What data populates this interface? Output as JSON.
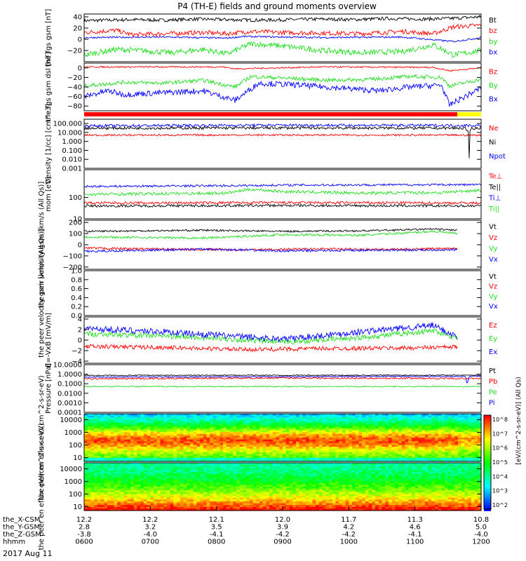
{
  "title": "P4 (TH-E) fields and ground moments overview",
  "date_label": "2017 Aug 11",
  "colors": {
    "black": "#000000",
    "red": "#ff0000",
    "green": "#22dd22",
    "blue": "#0000ff"
  },
  "status_bar": {
    "colors": [
      "#ff0000",
      "#ffff00"
    ]
  },
  "colorbar": {
    "unit_label": "[eV/(cm^2-s-sr-eV)] (All Qs)",
    "ticks": [
      "10^8",
      "10^7",
      "10^6",
      "10^5",
      "10^4",
      "10^3",
      "10^2"
    ]
  },
  "ephemeris": {
    "rows": [
      {
        "label": "the_X-CSM",
        "values": [
          "12.2",
          "12.2",
          "12.1",
          "12.0",
          "11.7",
          "11.3",
          "10.8"
        ]
      },
      {
        "label": "the_Y-GSM",
        "values": [
          "2.8",
          "3.2",
          "3.5",
          "3.9",
          "4.2",
          "4.6",
          "5.0"
        ]
      },
      {
        "label": "the_Z-GSM",
        "values": [
          "-3.8",
          "-4.0",
          "-4.1",
          "-4.2",
          "-4.2",
          "-4.1",
          "-4.0"
        ]
      },
      {
        "label": "hhmm",
        "values": [
          "0600",
          "0700",
          "0800",
          "0900",
          "1000",
          "1100",
          "1200"
        ]
      }
    ]
  },
  "chart_data": [
    {
      "type": "line",
      "id": "fgs_gsm",
      "ylabel": "the fgs gsm [nT]",
      "ylim": [
        -40,
        45
      ],
      "yticks": [
        "40",
        "20",
        "0",
        "−20"
      ],
      "series": [
        {
          "name": "Bt",
          "base": 34,
          "noise": 3,
          "points": [
            [
              0,
              33
            ],
            [
              0.05,
              34
            ],
            [
              0.12,
              35
            ],
            [
              0.2,
              34
            ],
            [
              0.28,
              36
            ],
            [
              0.36,
              35
            ],
            [
              0.44,
              34
            ],
            [
              0.52,
              35
            ],
            [
              0.6,
              36
            ],
            [
              0.68,
              35
            ],
            [
              0.76,
              37
            ],
            [
              0.85,
              36
            ],
            [
              0.92,
              37
            ],
            [
              1,
              40
            ]
          ]
        },
        {
          "name": "bz",
          "base": 10,
          "noise": 4,
          "points": [
            [
              0,
              12
            ],
            [
              0.08,
              16
            ],
            [
              0.12,
              8
            ],
            [
              0.2,
              10
            ],
            [
              0.3,
              12
            ],
            [
              0.36,
              10
            ],
            [
              0.42,
              14
            ],
            [
              0.5,
              12
            ],
            [
              0.6,
              11
            ],
            [
              0.7,
              10
            ],
            [
              0.8,
              14
            ],
            [
              0.88,
              10
            ],
            [
              0.93,
              22
            ],
            [
              1,
              25
            ]
          ]
        },
        {
          "name": "by",
          "base": -22,
          "noise": 5,
          "points": [
            [
              0,
              -28
            ],
            [
              0.08,
              -18
            ],
            [
              0.14,
              -20
            ],
            [
              0.22,
              -24
            ],
            [
              0.3,
              -18
            ],
            [
              0.36,
              -26
            ],
            [
              0.42,
              -8
            ],
            [
              0.5,
              -12
            ],
            [
              0.6,
              -20
            ],
            [
              0.7,
              -24
            ],
            [
              0.8,
              -22
            ],
            [
              0.88,
              -10
            ],
            [
              0.93,
              -28
            ],
            [
              1,
              -20
            ]
          ]
        },
        {
          "name": "bx",
          "base": 3,
          "noise": 1.5,
          "points": [
            [
              0,
              3
            ],
            [
              0.2,
              4
            ],
            [
              0.36,
              2
            ],
            [
              0.4,
              5
            ],
            [
              0.6,
              3
            ],
            [
              0.8,
              4
            ],
            [
              0.93,
              -4
            ],
            [
              1,
              3
            ]
          ]
        }
      ]
    },
    {
      "type": "line",
      "id": "fgs_gsm_dsl",
      "ylabel": "the fgs gsm dsl [nT]",
      "ylim": [
        -90,
        10
      ],
      "yticks": [
        "0",
        "−20",
        "−40",
        "−60",
        "−80"
      ],
      "series": [
        {
          "name": "Bz",
          "base": 2,
          "noise": 1.5,
          "points": [
            [
              0,
              2
            ],
            [
              0.35,
              2
            ],
            [
              0.38,
              -2
            ],
            [
              0.6,
              2
            ],
            [
              0.88,
              1
            ],
            [
              0.92,
              -6
            ],
            [
              1,
              0
            ]
          ]
        },
        {
          "name": "By",
          "base": -30,
          "noise": 4,
          "points": [
            [
              0,
              -38
            ],
            [
              0.1,
              -30
            ],
            [
              0.2,
              -32
            ],
            [
              0.3,
              -26
            ],
            [
              0.38,
              -40
            ],
            [
              0.42,
              -18
            ],
            [
              0.52,
              -22
            ],
            [
              0.62,
              -26
            ],
            [
              0.72,
              -24
            ],
            [
              0.82,
              -18
            ],
            [
              0.9,
              -20
            ],
            [
              0.92,
              -38
            ],
            [
              1,
              -24
            ]
          ]
        },
        {
          "name": "Bx",
          "base": -50,
          "noise": 6,
          "points": [
            [
              0,
              -60
            ],
            [
              0.06,
              -48
            ],
            [
              0.1,
              -56
            ],
            [
              0.2,
              -52
            ],
            [
              0.3,
              -48
            ],
            [
              0.38,
              -68
            ],
            [
              0.44,
              -32
            ],
            [
              0.54,
              -36
            ],
            [
              0.64,
              -42
            ],
            [
              0.74,
              -48
            ],
            [
              0.82,
              -40
            ],
            [
              0.9,
              -36
            ],
            [
              0.92,
              -78
            ],
            [
              1,
              -42
            ]
          ]
        }
      ]
    },
    {
      "type": "line",
      "id": "density",
      "scale": "log",
      "ylabel": "Density [1/cc] [cm^-3]",
      "ylim": [
        0.001,
        300
      ],
      "yticks": [
        "100.000",
        "10.000",
        "1.000",
        "0.100",
        "0.010",
        "0.001"
      ],
      "series": [
        {
          "name": "Ne",
          "base": 5,
          "noise": 0.1,
          "points": [
            [
              0,
              5
            ],
            [
              0.5,
              5.2
            ],
            [
              0.95,
              5
            ],
            [
              1,
              5
            ]
          ]
        },
        {
          "name": "Ni",
          "base": 30,
          "noise": 0.15,
          "points": [
            [
              0,
              30
            ],
            [
              0.5,
              32
            ],
            [
              0.96,
              30
            ],
            [
              0.97,
              0.01
            ],
            [
              0.975,
              30
            ],
            [
              1,
              30
            ]
          ]
        },
        {
          "name": "Npot",
          "base": 60,
          "noise": 0.15,
          "points": [
            [
              0,
              55
            ],
            [
              0.5,
              65
            ],
            [
              1,
              60
            ]
          ]
        }
      ]
    },
    {
      "type": "line",
      "id": "temperature",
      "scale": "log",
      "ylabel": "mom [eV]",
      "ylim": [
        10,
        2000
      ],
      "yticks": [
        "100",
        "10"
      ],
      "series": [
        {
          "name": "Te⊥",
          "base": 55,
          "noise": 0.06,
          "points": [
            [
              0,
              55
            ],
            [
              0.5,
              57
            ],
            [
              1,
              55
            ]
          ]
        },
        {
          "name": "Te||",
          "base": 40,
          "noise": 0.06,
          "points": [
            [
              0,
              40
            ],
            [
              0.5,
              42
            ],
            [
              1,
              40
            ]
          ]
        },
        {
          "name": "Ti⊥",
          "base": 350,
          "noise": 0.05,
          "points": [
            [
              0,
              330
            ],
            [
              0.4,
              360
            ],
            [
              0.5,
              380
            ],
            [
              1,
              400
            ]
          ]
        },
        {
          "name": "Ti||",
          "base": 150,
          "noise": 0.07,
          "points": [
            [
              0,
              140
            ],
            [
              0.36,
              160
            ],
            [
              0.42,
              240
            ],
            [
              0.5,
              190
            ],
            [
              0.7,
              160
            ],
            [
              0.9,
              170
            ],
            [
              1,
              220
            ]
          ]
        }
      ]
    },
    {
      "type": "line",
      "id": "peir_velocity",
      "ylabel": "the peir velocity gsm [km/s (All Qs)]",
      "ylim": [
        -220,
        220
      ],
      "yticks": [
        "200",
        "100",
        "0",
        "−100",
        "−200"
      ],
      "x_end": 0.94,
      "series": [
        {
          "name": "Vt",
          "base": 120,
          "noise": 8,
          "points": [
            [
              0,
              120
            ],
            [
              0.3,
              130
            ],
            [
              0.5,
              120
            ],
            [
              0.7,
              125
            ],
            [
              0.88,
              140
            ],
            [
              0.94,
              130
            ]
          ]
        },
        {
          "name": "Vz",
          "base": -40,
          "noise": 10,
          "points": [
            [
              0,
              -30
            ],
            [
              0.2,
              -40
            ],
            [
              0.4,
              -45
            ],
            [
              0.6,
              -38
            ],
            [
              0.8,
              -42
            ],
            [
              0.94,
              -30
            ]
          ]
        },
        {
          "name": "Vy",
          "base": 80,
          "noise": 10,
          "points": [
            [
              0,
              70
            ],
            [
              0.3,
              60
            ],
            [
              0.5,
              90
            ],
            [
              0.7,
              85
            ],
            [
              0.88,
              120
            ],
            [
              0.94,
              100
            ]
          ]
        },
        {
          "name": "Vx",
          "base": -50,
          "noise": 10,
          "points": [
            [
              0,
              -60
            ],
            [
              0.3,
              -40
            ],
            [
              0.5,
              -55
            ],
            [
              0.7,
              -50
            ],
            [
              0.94,
              -45
            ]
          ]
        }
      ]
    },
    {
      "type": "line",
      "id": "peer_velocity",
      "ylabel": "the peer velocity gsm [km/s (All Qs)]",
      "ylim": [
        0,
        1.0
      ],
      "yticks": [
        "1.0",
        "0.8",
        "0.6",
        "0.4",
        "0.2",
        "0.0"
      ],
      "series": [
        {
          "name": "Vt",
          "base": 0,
          "noise": 0,
          "points": []
        },
        {
          "name": "Vz",
          "base": 0,
          "noise": 0,
          "points": []
        },
        {
          "name": "Vy",
          "base": 0,
          "noise": 0,
          "points": []
        },
        {
          "name": "Vx",
          "base": 0,
          "noise": 0,
          "points": []
        }
      ]
    },
    {
      "type": "line",
      "id": "efield",
      "ylabel": "E=-VxB [mV/m]",
      "ylim": [
        -4.4,
        4.4
      ],
      "yticks": [
        "4",
        "2",
        "0",
        "−2",
        "−4"
      ],
      "x_end": 0.94,
      "series": [
        {
          "name": "Ez",
          "base": -1.5,
          "noise": 0.4,
          "points": [
            [
              0,
              -1.2
            ],
            [
              0.2,
              -1.4
            ],
            [
              0.4,
              -1.8
            ],
            [
              0.6,
              -1.6
            ],
            [
              0.8,
              -1.5
            ],
            [
              0.94,
              -1.3
            ]
          ]
        },
        {
          "name": "Ey",
          "base": 0.6,
          "noise": 0.5,
          "points": [
            [
              0,
              1.2
            ],
            [
              0.2,
              0.8
            ],
            [
              0.36,
              0.2
            ],
            [
              0.5,
              -0.4
            ],
            [
              0.7,
              0.5
            ],
            [
              0.88,
              1.8
            ],
            [
              0.94,
              0.4
            ]
          ]
        },
        {
          "name": "Ex",
          "base": 1.0,
          "noise": 0.6,
          "points": [
            [
              0,
              2.2
            ],
            [
              0.2,
              1.6
            ],
            [
              0.36,
              0.8
            ],
            [
              0.5,
              0.2
            ],
            [
              0.7,
              1.6
            ],
            [
              0.88,
              2.8
            ],
            [
              0.94,
              0.6
            ]
          ]
        }
      ]
    },
    {
      "type": "line",
      "id": "pressure",
      "scale": "log",
      "ylabel": "Pressure [nPa]",
      "ylim": [
        0.0001,
        10
      ],
      "yticks": [
        "10.0000",
        "1.0000",
        "0.1000",
        "0.0100",
        "0.0010",
        "0.0001"
      ],
      "series": [
        {
          "name": "Pt",
          "base": 0.75,
          "noise": 0.05,
          "points": [
            [
              0,
              0.75
            ],
            [
              0.96,
              0.8
            ],
            [
              1,
              0.8
            ]
          ]
        },
        {
          "name": "Pb",
          "base": 0.35,
          "noise": 0.08,
          "points": [
            [
              0,
              0.33
            ],
            [
              0.5,
              0.4
            ],
            [
              1,
              0.35
            ]
          ]
        },
        {
          "name": "Pe",
          "base": 0.05,
          "noise": 0.06,
          "points": [
            [
              0,
              0.05
            ],
            [
              1,
              0.05
            ]
          ]
        },
        {
          "name": "Pi",
          "base": 0.55,
          "noise": 0.06,
          "points": [
            [
              0,
              0.5
            ],
            [
              0.96,
              0.6
            ],
            [
              0.965,
              0.0002
            ],
            [
              0.97,
              0.6
            ],
            [
              1,
              0.6
            ]
          ]
        }
      ]
    },
    {
      "type": "heatmap",
      "id": "peir_eflux",
      "ylabel": "the peir en eflux eV/(cm^2-s-sr-eV)",
      "scale": "log",
      "ylim": [
        5,
        30000
      ],
      "yticks": [
        "10000",
        "1000",
        "100",
        "10"
      ]
    },
    {
      "type": "heatmap",
      "id": "peer_eflux",
      "ylabel": "the peer en eflux eV/(cm^2-s-sr-eV)",
      "scale": "log",
      "ylim": [
        5,
        30000
      ],
      "yticks": [
        "10000",
        "1000",
        "100",
        "10"
      ]
    }
  ]
}
